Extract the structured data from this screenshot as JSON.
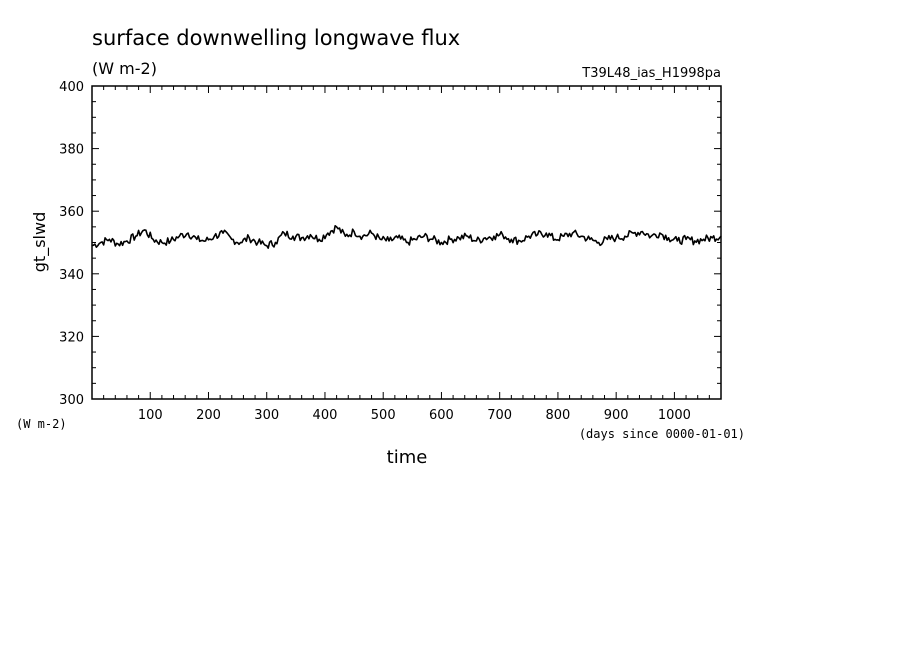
{
  "chart_data": {
    "type": "line",
    "title": "surface downwelling longwave flux",
    "subtitle": "(W m-2)",
    "run_label": "T39L48_ias_H1998pa",
    "ylabel": "gt_slwd",
    "yunit": "(W m-2)",
    "xlabel": "time",
    "xunit": "(days since 0000-01-01)",
    "xlim": [
      0,
      1080
    ],
    "ylim": [
      300,
      400
    ],
    "xticks": [
      100,
      200,
      300,
      400,
      500,
      600,
      700,
      800,
      900,
      1000
    ],
    "yticks": [
      300,
      320,
      340,
      360,
      380,
      400
    ],
    "grid": false,
    "line_color": "#000000",
    "series": [
      {
        "x": [
          0,
          15,
          30,
          45,
          60,
          75,
          90,
          105,
          120,
          135,
          150,
          165,
          180,
          195,
          210,
          225,
          240,
          255,
          270,
          285,
          300,
          315,
          330,
          345,
          360,
          375,
          390,
          405,
          420,
          435,
          450,
          465,
          480,
          495,
          510,
          525,
          540,
          555,
          570,
          585,
          600,
          615,
          630,
          645,
          660,
          675,
          690,
          705,
          720,
          735,
          750,
          765,
          780,
          795,
          810,
          825,
          840,
          855,
          870,
          885,
          900,
          915,
          930,
          945,
          960,
          975,
          990,
          1005,
          1020,
          1035,
          1050,
          1065,
          1080
        ],
        "y": [
          349,
          350,
          351,
          349.5,
          350.5,
          352,
          354,
          351,
          350,
          350.5,
          352,
          353,
          351,
          350.5,
          352,
          353,
          351,
          350,
          351.5,
          350,
          349,
          350,
          353,
          352,
          351.5,
          352.5,
          351,
          353,
          355,
          352,
          353.5,
          352,
          353,
          351,
          350.5,
          351.5,
          350,
          351,
          352,
          351,
          350,
          351,
          351.5,
          352,
          350.5,
          351.5,
          352,
          352.5,
          351,
          350.5,
          352,
          352.5,
          353,
          351,
          352,
          353,
          352,
          351,
          350,
          351,
          351.5,
          352,
          353,
          353.5,
          352,
          353,
          351.5,
          350.5,
          351,
          350.5,
          351,
          351.5,
          352
        ]
      }
    ]
  }
}
